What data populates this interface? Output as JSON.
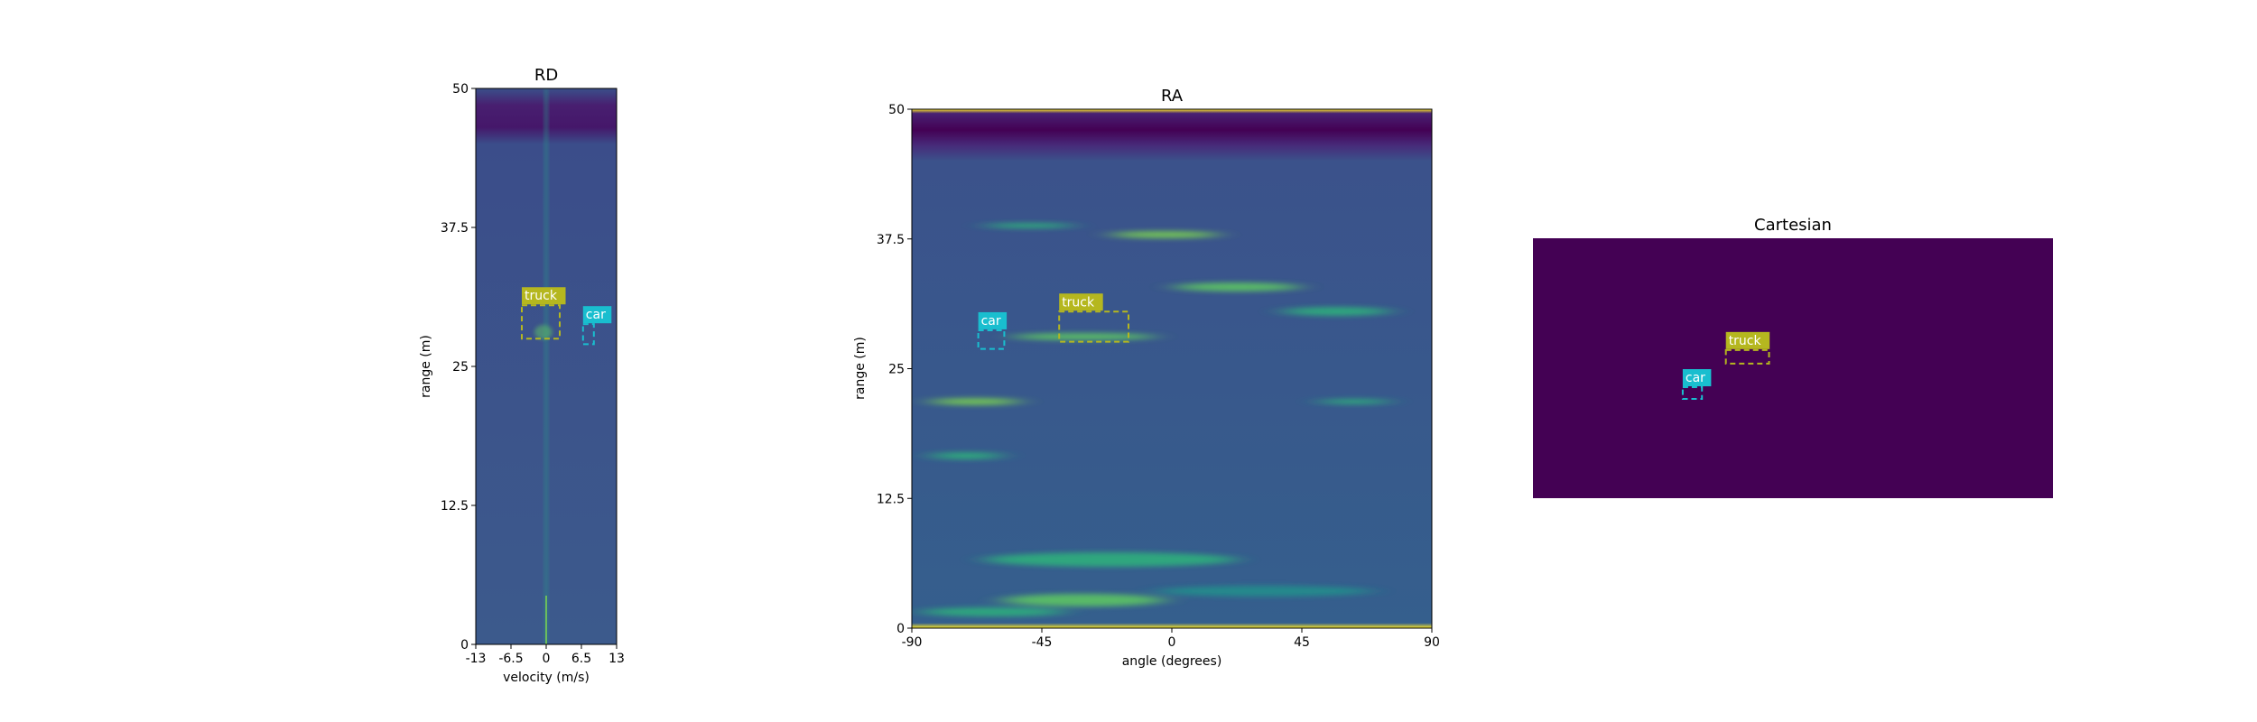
{
  "chart_data": [
    {
      "panel": "rd",
      "type": "heatmap",
      "title": "RD",
      "xlabel": "velocity (m/s)",
      "ylabel": "range (m)",
      "xlim": [
        -13,
        13
      ],
      "ylim": [
        0,
        50
      ],
      "xticks": [
        "-13",
        "-6.5",
        "0",
        "6.5",
        "13"
      ],
      "yticks": [
        "0",
        "12.5",
        "25",
        "37.5",
        "50"
      ],
      "annotations": [
        {
          "label": "truck",
          "x0": -4.5,
          "x1": 2.5,
          "y0": 27.5,
          "y1": 30.5,
          "color": "#b5b71f"
        },
        {
          "label": "car",
          "x0": 6.8,
          "x1": 8.8,
          "y0": 27.0,
          "y1": 28.8,
          "color": "#19becf"
        }
      ]
    },
    {
      "panel": "ra",
      "type": "heatmap",
      "title": "RA",
      "xlabel": "angle (degrees)",
      "ylabel": "range (m)",
      "xlim": [
        -90,
        90
      ],
      "ylim": [
        0,
        50
      ],
      "xticks": [
        "-90",
        "-45",
        "0",
        "45",
        "90"
      ],
      "yticks": [
        "0",
        "12.5",
        "25",
        "37.5",
        "50"
      ],
      "annotations": [
        {
          "label": "truck",
          "x0": -39,
          "x1": -15,
          "y0": 27.6,
          "y1": 30.5,
          "color": "#b5b71f"
        },
        {
          "label": "car",
          "x0": -67,
          "x1": -58,
          "y0": 26.9,
          "y1": 28.7,
          "color": "#19becf"
        }
      ]
    },
    {
      "panel": "cart",
      "type": "heatmap",
      "title": "Cartesian",
      "background": "#440154",
      "annotations": [
        {
          "label": "truck",
          "x0": 0.371,
          "x1": 0.454,
          "y0": 0.43,
          "y1": 0.482,
          "color": "#b5b71f"
        },
        {
          "label": "car",
          "x0": 0.288,
          "x1": 0.325,
          "y0": 0.573,
          "y1": 0.618,
          "color": "#19becf"
        }
      ]
    }
  ],
  "colors": {
    "viridis_base": "#3b528b",
    "viridis_dark": "#440154",
    "viridis_bright": "#5ec962",
    "viridis_yellow": "#fde725"
  }
}
